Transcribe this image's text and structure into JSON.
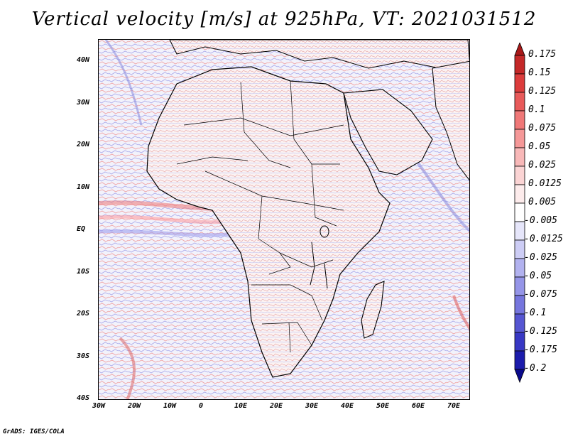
{
  "title": "Vertical velocity [m/s] at 925hPa, VT: 2021031512",
  "credit": "GrADS: IGES/COLA",
  "map": {
    "lon_labels": [
      "30W",
      "20W",
      "10W",
      "0",
      "10E",
      "20E",
      "30E",
      "40E",
      "50E",
      "60E",
      "70E"
    ],
    "lat_labels": [
      "40N",
      "30N",
      "20N",
      "10N",
      "EQ",
      "10S",
      "20S",
      "30S",
      "40S"
    ],
    "lon_range": [
      -30,
      75
    ],
    "lat_range": [
      -40,
      45
    ]
  },
  "colorbar": {
    "labels": [
      "0.175",
      "0.15",
      "0.125",
      "0.1",
      "0.075",
      "0.05",
      "0.025",
      "0.0125",
      "0.005",
      "-0.005",
      "-0.0125",
      "-0.025",
      "-0.05",
      "-0.075",
      "-0.1",
      "-0.125",
      "-0.175",
      "-0.2"
    ],
    "colors": [
      "#a81818",
      "#c42828",
      "#dc3c3c",
      "#e85a5a",
      "#f07878",
      "#f59898",
      "#f8b8b8",
      "#fbd4d4",
      "#fdecec",
      "#ffffff",
      "#e6e6fa",
      "#cdcdf5",
      "#b2b2ef",
      "#9595e8",
      "#7676de",
      "#5656d2",
      "#3838c4",
      "#1c1cac",
      "#0a0a8c"
    ]
  }
}
